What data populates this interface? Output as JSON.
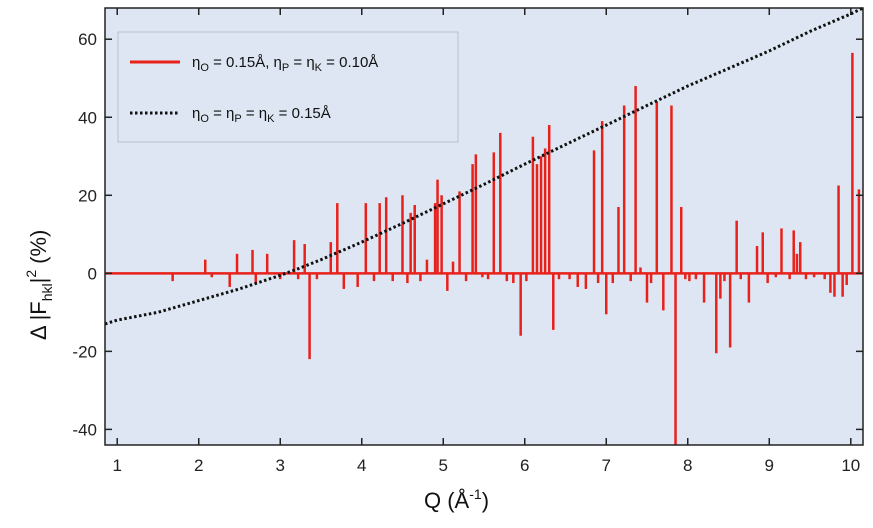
{
  "chart_data": {
    "type": "bar",
    "xlabel_main": "Q (Å",
    "xlabel_sup": "-1",
    "xlabel_end": ")",
    "ylabel_delta": "Δ |F",
    "ylabel_sub": "hkl",
    "ylabel_bar": "|",
    "ylabel_sup": "2",
    "ylabel_unit": "(%)",
    "xlim": [
      0.85,
      10.15
    ],
    "ylim": [
      -44,
      68
    ],
    "x_ticks": [
      1,
      2,
      3,
      4,
      5,
      6,
      7,
      8,
      9,
      10
    ],
    "y_ticks": [
      -40,
      -20,
      0,
      20,
      40,
      60
    ],
    "grid": false,
    "legend_position": "top-left",
    "colors": {
      "plot_background": "#dde6f2",
      "bars": "#e8211b",
      "curve": "#111111"
    },
    "legend": [
      {
        "style": "red-solid-line",
        "parts": [
          "η",
          "O",
          " = 0.15Å, η",
          "P",
          " = η",
          "K",
          " = 0.10Å"
        ]
      },
      {
        "style": "black-dotted-line",
        "parts": [
          "η",
          "O",
          " = η",
          "P",
          " = η",
          "K",
          " = 0.15Å"
        ]
      }
    ],
    "series": [
      {
        "type": "vertical-lines",
        "x": [
          1.25,
          1.68,
          2.08,
          2.16,
          2.38,
          2.47,
          2.66,
          2.7,
          2.84,
          3.0,
          3.17,
          3.22,
          3.3,
          3.36,
          3.45,
          3.62,
          3.7,
          3.78,
          3.95,
          4.05,
          4.15,
          4.22,
          4.3,
          4.38,
          4.5,
          4.56,
          4.6,
          4.65,
          4.72,
          4.8,
          4.9,
          4.93,
          4.98,
          5.05,
          5.12,
          5.2,
          5.28,
          5.36,
          5.4,
          5.48,
          5.55,
          5.62,
          5.7,
          5.78,
          5.86,
          5.95,
          6.02,
          6.1,
          6.15,
          6.2,
          6.25,
          6.3,
          6.35,
          6.42,
          6.55,
          6.65,
          6.75,
          6.85,
          6.9,
          6.95,
          7.0,
          7.08,
          7.15,
          7.22,
          7.3,
          7.36,
          7.42,
          7.5,
          7.55,
          7.62,
          7.7,
          7.8,
          7.85,
          7.92,
          7.97,
          8.02,
          8.1,
          8.2,
          8.35,
          8.4,
          8.45,
          8.52,
          8.6,
          8.65,
          8.75,
          8.85,
          8.92,
          8.98,
          9.08,
          9.15,
          9.25,
          9.3,
          9.34,
          9.38,
          9.45,
          9.55,
          9.68,
          9.75,
          9.8,
          9.85,
          9.9,
          9.95,
          10.02,
          10.1
        ],
        "y": [
          0.2,
          -2,
          3.5,
          -1,
          -3.5,
          5,
          6,
          -2.5,
          5,
          -1.5,
          8.5,
          -1.5,
          7.5,
          -22,
          -1.5,
          8,
          18,
          -4,
          -3.5,
          18,
          -2,
          18,
          19.5,
          -2,
          20,
          -2.5,
          15.5,
          17.5,
          -2,
          3.5,
          18,
          24,
          20,
          -4.5,
          3,
          21,
          -2,
          28,
          30.5,
          -1,
          -1.5,
          31,
          36,
          -2,
          -2.5,
          -16,
          -2,
          35,
          28,
          30,
          32,
          38,
          -14.5,
          -1.5,
          -1.5,
          -3.5,
          -4,
          31.5,
          -2.5,
          39,
          -10.5,
          -2.5,
          17,
          43,
          -2,
          48,
          1.5,
          -7.5,
          -2.5,
          44,
          -9.5,
          43,
          -44,
          17,
          -1.5,
          -2,
          -1.5,
          -7.5,
          -20.5,
          -6.5,
          -2,
          -19,
          13.5,
          -1.5,
          -7.5,
          7,
          10.5,
          -2.5,
          -1,
          11.5,
          -1.5,
          11,
          5,
          8,
          -1.5,
          -1,
          -1.5,
          -5,
          -6,
          22.5,
          -6,
          -3,
          56.5,
          21.5
        ]
      },
      {
        "type": "dotted-curve",
        "x": [
          0.85,
          1.0,
          1.5,
          2.0,
          2.5,
          3.0,
          3.2,
          3.5,
          4.0,
          4.5,
          5.0,
          5.5,
          6.0,
          6.5,
          7.0,
          7.5,
          8.0,
          8.5,
          9.0,
          9.5,
          10.0,
          10.15
        ],
        "y": [
          -13,
          -12,
          -10,
          -7,
          -4,
          -0.5,
          1,
          3.5,
          8,
          12.8,
          17.8,
          22.8,
          28,
          33,
          38,
          43,
          48,
          52.5,
          57,
          62,
          66.5,
          68
        ]
      }
    ]
  }
}
